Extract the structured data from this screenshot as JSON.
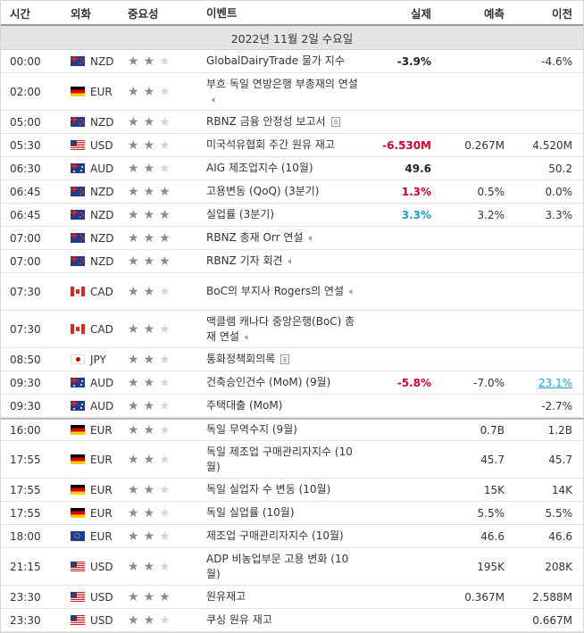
{
  "headers": {
    "time": "시간",
    "currency": "외화",
    "importance": "중요성",
    "event": "이벤트",
    "actual": "실제",
    "forecast": "예측",
    "previous": "이전"
  },
  "date_label": "2022년 11월 2일 수요일",
  "rows": [
    {
      "time": "00:00",
      "flag": "nz",
      "cur": "NZD",
      "stars": 2,
      "event": "GlobalDairyTrade 물가 지수",
      "icon": "",
      "actual": "-3.9%",
      "act_color": "blk",
      "forecast": "",
      "previous": "-4.6%",
      "h": 26
    },
    {
      "time": "02:00",
      "flag": "de",
      "cur": "EUR",
      "stars": 2,
      "event": "부흐 독일 연방은행 부총재의 연설",
      "icon": "speaker",
      "actual": "",
      "act_color": "blk",
      "forecast": "",
      "previous": "",
      "h": 42
    },
    {
      "time": "05:00",
      "flag": "nz",
      "cur": "NZD",
      "stars": 2,
      "event": "RBNZ 금융 안정성 보고서",
      "icon": "doc",
      "actual": "",
      "act_color": "blk",
      "forecast": "",
      "previous": "",
      "h": 26
    },
    {
      "time": "05:30",
      "flag": "us",
      "cur": "USD",
      "stars": 2,
      "event": "미국석유협회 주간 원유 재고",
      "icon": "",
      "actual": "-6.530M",
      "act_color": "neg",
      "forecast": "0.267M",
      "previous": "4.520M",
      "h": 26
    },
    {
      "time": "06:30",
      "flag": "au",
      "cur": "AUD",
      "stars": 2,
      "event": "AIG 제조업지수 (10월)",
      "icon": "",
      "actual": "49.6",
      "act_color": "blk",
      "forecast": "",
      "previous": "50.2",
      "h": 26
    },
    {
      "time": "06:45",
      "flag": "nz",
      "cur": "NZD",
      "stars": 3,
      "event": "고용변동 (QoQ) (3분기)",
      "icon": "",
      "actual": "1.3%",
      "act_color": "neg",
      "forecast": "0.5%",
      "previous": "0.0%",
      "h": 26
    },
    {
      "time": "06:45",
      "flag": "nz",
      "cur": "NZD",
      "stars": 3,
      "event": "실업률 (3분기)",
      "icon": "",
      "actual": "3.3%",
      "act_color": "pos",
      "forecast": "3.2%",
      "previous": "3.3%",
      "h": 26
    },
    {
      "time": "07:00",
      "flag": "nz",
      "cur": "NZD",
      "stars": 3,
      "event": "RBNZ 총재 Orr 연설",
      "icon": "speaker",
      "actual": "",
      "act_color": "blk",
      "forecast": "",
      "previous": "",
      "h": 26
    },
    {
      "time": "07:00",
      "flag": "nz",
      "cur": "NZD",
      "stars": 3,
      "event": "RBNZ 기자 회견",
      "icon": "speaker",
      "actual": "",
      "act_color": "blk",
      "forecast": "",
      "previous": "",
      "h": 26
    },
    {
      "time": "07:30",
      "flag": "ca",
      "cur": "CAD",
      "stars": 2,
      "event": "BoC의 부지사 Rogers의 연설",
      "icon": "speaker",
      "actual": "",
      "act_color": "blk",
      "forecast": "",
      "previous": "",
      "h": 42
    },
    {
      "time": "07:30",
      "flag": "ca",
      "cur": "CAD",
      "stars": 2,
      "event": "맥클램 캐나다 중앙은행(BoC) 총재 연설",
      "icon": "speaker",
      "actual": "",
      "act_color": "blk",
      "forecast": "",
      "previous": "",
      "h": 42
    },
    {
      "time": "08:50",
      "flag": "jp",
      "cur": "JPY",
      "stars": 2,
      "event": "통화정책회의록",
      "icon": "doc",
      "actual": "",
      "act_color": "blk",
      "forecast": "",
      "previous": "",
      "h": 26
    },
    {
      "time": "09:30",
      "flag": "au",
      "cur": "AUD",
      "stars": 2,
      "event": "건축승인건수 (MoM) (9월)",
      "icon": "",
      "actual": "-5.8%",
      "act_color": "neg",
      "forecast": "-7.0%",
      "previous": "23.1%",
      "prev_link": true,
      "h": 26
    },
    {
      "time": "09:30",
      "flag": "au",
      "cur": "AUD",
      "stars": 2,
      "event": "주택대출 (MoM)",
      "icon": "",
      "actual": "",
      "act_color": "blk",
      "forecast": "",
      "previous": "-2.7%",
      "h": 26
    },
    {
      "time": "16:00",
      "flag": "de",
      "cur": "EUR",
      "stars": 2,
      "event": "독일 무역수지 (9월)",
      "icon": "",
      "actual": "",
      "act_color": "blk",
      "forecast": "0.7B",
      "previous": "1.2B",
      "h": 26,
      "sep": true
    },
    {
      "time": "17:55",
      "flag": "de",
      "cur": "EUR",
      "stars": 2,
      "event": "독일 제조업 구매관리자지수 (10월)",
      "icon": "",
      "actual": "",
      "act_color": "blk",
      "forecast": "45.7",
      "previous": "45.7",
      "h": 42
    },
    {
      "time": "17:55",
      "flag": "de",
      "cur": "EUR",
      "stars": 2,
      "event": "독일 실업자 수 변동 (10월)",
      "icon": "",
      "actual": "",
      "act_color": "blk",
      "forecast": "15K",
      "previous": "14K",
      "h": 26
    },
    {
      "time": "17:55",
      "flag": "de",
      "cur": "EUR",
      "stars": 2,
      "event": "독일 실업률 (10월)",
      "icon": "",
      "actual": "",
      "act_color": "blk",
      "forecast": "5.5%",
      "previous": "5.5%",
      "h": 26
    },
    {
      "time": "18:00",
      "flag": "eu",
      "cur": "EUR",
      "stars": 2,
      "event": "제조업 구매관리자지수 (10월)",
      "icon": "",
      "actual": "",
      "act_color": "blk",
      "forecast": "46.6",
      "previous": "46.6",
      "h": 26
    },
    {
      "time": "21:15",
      "flag": "us",
      "cur": "USD",
      "stars": 2,
      "event": "ADP 비농업부문 고용 변화 (10월)",
      "icon": "",
      "actual": "",
      "act_color": "blk",
      "forecast": "195K",
      "previous": "208K",
      "h": 42
    },
    {
      "time": "23:30",
      "flag": "us",
      "cur": "USD",
      "stars": 3,
      "event": "원유재고",
      "icon": "",
      "actual": "",
      "act_color": "blk",
      "forecast": "0.367M",
      "previous": "2.588M",
      "h": 26
    },
    {
      "time": "23:30",
      "flag": "us",
      "cur": "USD",
      "stars": 2,
      "event": "쿠싱 원유 재고",
      "icon": "",
      "actual": "",
      "act_color": "blk",
      "forecast": "",
      "previous": "0.667M",
      "h": 26
    }
  ]
}
